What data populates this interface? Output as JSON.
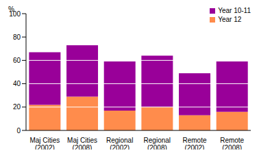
{
  "chart_data": {
    "type": "bar",
    "stacked": true,
    "y_label": "%",
    "categories": [
      "Maj Cities (2002)",
      "Maj Cities (2008)",
      "Regional (2002)",
      "Regional (2008)",
      "Remote (2002)",
      "Remote (2008)"
    ],
    "series": [
      {
        "name": "Year 12",
        "color": "#ff8c4c",
        "values": [
          22,
          29,
          17,
          20,
          13,
          16
        ]
      },
      {
        "name": "Year 10-11",
        "color": "#990099",
        "values": [
          45,
          44,
          42,
          44,
          36,
          43
        ]
      }
    ],
    "ylim": [
      0,
      100
    ],
    "yticks": [
      0,
      20,
      40,
      60,
      80,
      100
    ],
    "grid": true,
    "legend": "top-right"
  }
}
